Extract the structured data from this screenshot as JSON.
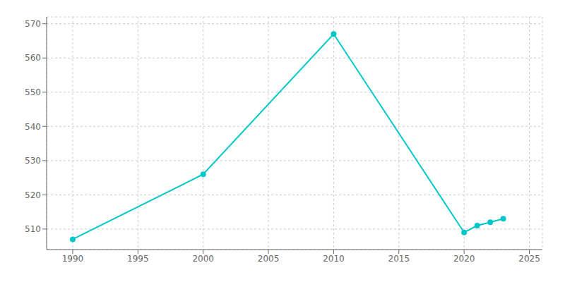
{
  "chart_data": {
    "type": "line",
    "x": [
      1990,
      2000,
      2010,
      2020,
      2021,
      2022,
      2023
    ],
    "values": [
      507,
      526,
      567,
      509,
      511,
      512,
      513
    ],
    "color": "#00c8c8",
    "marker": "circle",
    "xlim": [
      1988,
      2026
    ],
    "ylim": [
      504,
      572
    ],
    "xticks": [
      1990,
      1995,
      2000,
      2005,
      2010,
      2015,
      2020,
      2025
    ],
    "yticks": [
      510,
      520,
      530,
      540,
      550,
      560,
      570
    ],
    "grid": true
  }
}
